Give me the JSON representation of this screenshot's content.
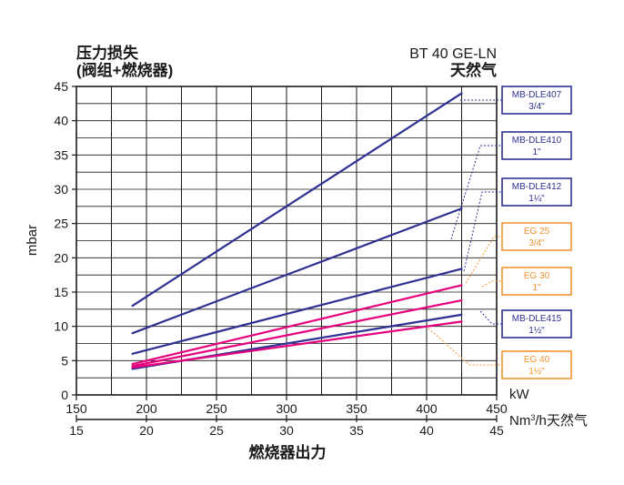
{
  "header": {
    "title_line1": "压力损失",
    "title_line2": "(阀组+燃烧器)",
    "model": "BT 40 GE-LN",
    "fuel": "天然气"
  },
  "colors": {
    "navy": "#2e3192",
    "magenta": "#e6007e",
    "orange": "#f39233",
    "grid": "#1a1a1a"
  },
  "chart_data": {
    "type": "line",
    "xlabel": "燃烧器出力",
    "xunit_primary": "kW",
    "xunit_secondary_prefix": "Nm",
    "xunit_secondary_sup": "3",
    "xunit_secondary_suffix": "/h天然气",
    "ylabel": "mbar",
    "xlim": [
      150,
      450
    ],
    "xticks": [
      150,
      200,
      250,
      300,
      350,
      400,
      450
    ],
    "x2lim": [
      15,
      45
    ],
    "x2ticks": [
      15,
      20,
      25,
      30,
      35,
      40,
      45
    ],
    "ylim": [
      0,
      45
    ],
    "yticks": [
      0,
      5,
      10,
      15,
      20,
      25,
      30,
      35,
      40,
      45
    ],
    "grid": true,
    "series": [
      {
        "name": "MB-DLE407 3/4\"",
        "color": "#2e3192",
        "x": [
          190,
          425
        ],
        "y": [
          13.0,
          44.0
        ]
      },
      {
        "name": "MB-DLE410 1\"",
        "color": "#2e3192",
        "x": [
          190,
          425
        ],
        "y": [
          9.0,
          27.2
        ]
      },
      {
        "name": "MB-DLE412 1¼\"",
        "color": "#2e3192",
        "x": [
          190,
          425
        ],
        "y": [
          6.0,
          18.4
        ]
      },
      {
        "name": "EG 25 3/4\"",
        "color": "#e6007e",
        "x": [
          190,
          425
        ],
        "y": [
          4.5,
          16.0
        ]
      },
      {
        "name": "EG 30 1\"",
        "color": "#e6007e",
        "x": [
          190,
          425
        ],
        "y": [
          4.2,
          13.8
        ]
      },
      {
        "name": "MB-DLE415 1½\"",
        "color": "#2e3192",
        "x": [
          190,
          425
        ],
        "y": [
          3.8,
          11.7
        ]
      },
      {
        "name": "EG 40 1½\"",
        "color": "#e6007e",
        "x": [
          190,
          425
        ],
        "y": [
          4.0,
          10.7
        ]
      }
    ]
  },
  "legend": [
    {
      "line1": "MB-DLE407",
      "line2": "3/4\"",
      "color": "#2e3192"
    },
    {
      "line1": "MB-DLE410",
      "line2": "1\"",
      "color": "#2e3192"
    },
    {
      "line1": "MB-DLE412",
      "line2": "1¼\"",
      "color": "#2e3192"
    },
    {
      "line1": "EG 25",
      "line2": "3/4\"",
      "color": "#f39233"
    },
    {
      "line1": "EG 30",
      "line2": "1\"",
      "color": "#f39233"
    },
    {
      "line1": "MB-DLE415",
      "line2": "1½\"",
      "color": "#2e3192"
    },
    {
      "line1": "EG 40",
      "line2": "1½\"",
      "color": "#f39233"
    }
  ]
}
